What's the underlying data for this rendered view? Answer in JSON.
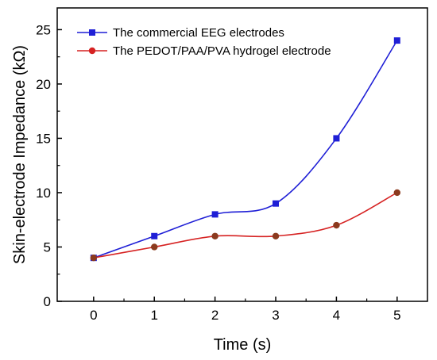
{
  "chart_data": {
    "type": "line",
    "title": "",
    "xlabel": "Time (s)",
    "ylabel": "Skin-electrode Impedance (kΩ)",
    "x": [
      0,
      1,
      2,
      3,
      4,
      5
    ],
    "xlim": [
      -0.6,
      5.5
    ],
    "ylim": [
      0,
      27
    ],
    "xticks": [
      0,
      1,
      2,
      3,
      4,
      5
    ],
    "yticks": [
      0,
      5,
      10,
      15,
      20,
      25
    ],
    "grid": false,
    "legend_position": "top-left",
    "series": [
      {
        "name": "The commercial EEG electrodes",
        "values": [
          4,
          6,
          8,
          9,
          15,
          24
        ],
        "color": "#1f1fd6",
        "marker": "square"
      },
      {
        "name": "The PEDOT/PAA/PVA hydrogel electrode",
        "values": [
          4,
          5,
          6,
          6,
          7,
          10
        ],
        "color": "#d62222",
        "marker_fill": "#8b3a1e",
        "marker": "circle"
      }
    ]
  }
}
